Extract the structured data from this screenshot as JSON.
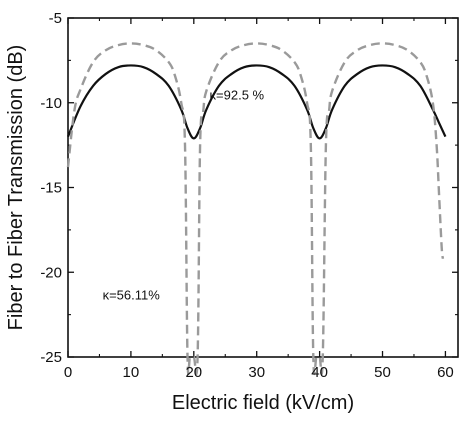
{
  "chart_data": {
    "type": "line",
    "title": "",
    "xlabel": "Electric field (kV/cm)",
    "ylabel": "Fiber to Fiber Transmission (dB)",
    "xlim": [
      0,
      62
    ],
    "ylim": [
      -25,
      -5
    ],
    "xticks": [
      0,
      10,
      20,
      30,
      40,
      50,
      60
    ],
    "yticks": [
      -5,
      -10,
      -15,
      -20,
      -25
    ],
    "grid": false,
    "series": [
      {
        "style": "solid",
        "color": "#111111",
        "x": [
          0,
          2,
          4,
          6,
          8,
          10,
          12,
          14,
          16,
          18,
          19,
          20,
          21,
          22,
          24,
          26,
          28,
          30,
          32,
          34,
          36,
          38,
          39,
          40,
          41,
          42,
          44,
          46,
          48,
          50,
          52,
          54,
          56,
          58,
          59,
          60
        ],
        "y": [
          -12.0,
          -10.2,
          -9.0,
          -8.3,
          -7.9,
          -7.8,
          -7.9,
          -8.3,
          -9.0,
          -10.4,
          -11.5,
          -12.1,
          -11.5,
          -10.4,
          -9.0,
          -8.3,
          -7.9,
          -7.8,
          -7.9,
          -8.3,
          -9.0,
          -10.4,
          -11.5,
          -12.1,
          -11.5,
          -10.4,
          -9.0,
          -8.3,
          -7.9,
          -7.8,
          -7.9,
          -8.3,
          -9.0,
          -10.4,
          -11.2,
          -12.0
        ]
      },
      {
        "style": "dashed",
        "color": "#9a9a9a",
        "x": [
          0,
          1,
          2,
          4,
          6,
          8,
          10,
          12,
          14,
          16,
          17,
          18,
          18.6,
          19,
          19.4,
          20,
          20.6,
          21,
          21.5,
          22,
          24,
          26,
          28,
          30,
          32,
          34,
          36,
          37,
          38,
          38.6,
          39,
          39.5,
          40,
          40.5,
          41,
          41.5,
          42,
          44,
          46,
          48,
          50,
          52,
          54,
          56,
          57,
          58,
          58.6,
          59,
          59.4,
          59.6
        ],
        "y": [
          -13.8,
          -10.5,
          -9.2,
          -7.6,
          -6.9,
          -6.6,
          -6.5,
          -6.6,
          -6.9,
          -7.6,
          -8.4,
          -10.0,
          -12.5,
          -25.0,
          -25.0,
          -25.0,
          -25.0,
          -12.5,
          -10.5,
          -9.3,
          -7.6,
          -6.9,
          -6.6,
          -6.5,
          -6.6,
          -6.9,
          -7.6,
          -8.4,
          -10.0,
          -12.5,
          -25.0,
          -25.0,
          -25.0,
          -25.0,
          -12.5,
          -10.5,
          -9.3,
          -7.6,
          -6.9,
          -6.6,
          -6.5,
          -6.6,
          -6.9,
          -7.6,
          -8.4,
          -10.0,
          -12.5,
          -15.5,
          -18.5,
          -19.2
        ]
      }
    ],
    "annotations": [
      {
        "text": "κ=92.5 %",
        "x": 22.5,
        "y": -9.8
      },
      {
        "text": "κ=56.11%",
        "x": 5.5,
        "y": -21.6
      }
    ]
  }
}
